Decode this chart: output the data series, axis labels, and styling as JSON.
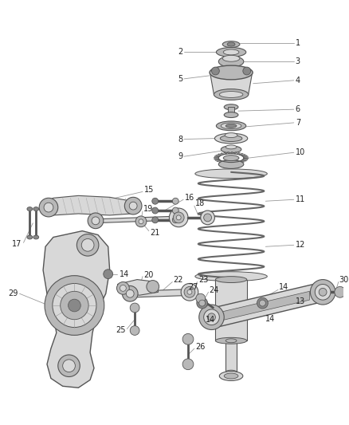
{
  "bg_color": "#ffffff",
  "fig_width": 4.38,
  "fig_height": 5.33,
  "dpi": 100,
  "part_edge": "#555555",
  "part_fill_light": "#d8d8d8",
  "part_fill_mid": "#b8b8b8",
  "part_fill_dark": "#888888",
  "leader_color": "#999999",
  "label_color": "#222222",
  "sx": 0.635,
  "label_fontsize": 7.0
}
